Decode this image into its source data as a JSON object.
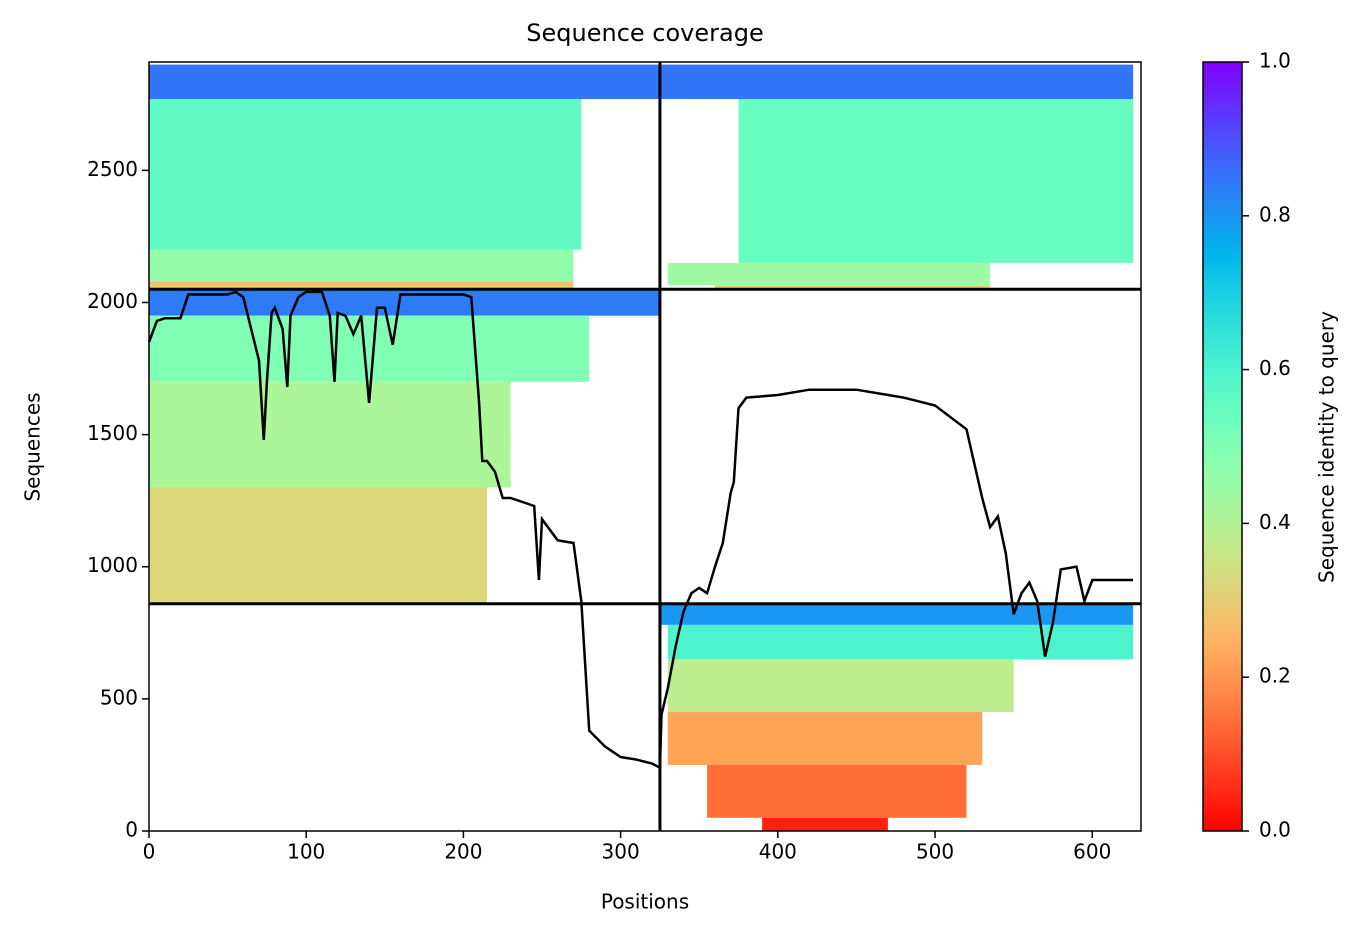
{
  "chart_data": {
    "type": "coverage",
    "title": "Sequence coverage",
    "xlabel": "Positions",
    "ylabel": "Sequences",
    "xlim": [
      0,
      631
    ],
    "ylim": [
      0,
      2910
    ],
    "xticks": [
      0,
      100,
      200,
      300,
      400,
      500,
      600
    ],
    "yticks": [
      0,
      500,
      1000,
      1500,
      2000,
      2500
    ],
    "colormap": "rainbow_r",
    "colorbar": {
      "label": "Sequence identity to query",
      "clim": [
        0,
        1
      ],
      "ticks": [
        {
          "value": 0,
          "label": "0.0"
        },
        {
          "value": 0.2,
          "label": "0.2"
        },
        {
          "value": 0.4,
          "label": "0.4"
        },
        {
          "value": 0.6,
          "label": "0.6"
        },
        {
          "value": 0.8,
          "label": "0.8"
        },
        {
          "value": 1,
          "label": "1.0"
        }
      ]
    },
    "dividers": {
      "x": [
        325
      ],
      "y": [
        860,
        2050
      ]
    },
    "blocks": [
      {
        "x0": 0,
        "x1": 325,
        "y0": 2770,
        "y1": 2900,
        "identity": 0.85
      },
      {
        "x0": 0,
        "x1": 275,
        "y0": 2200,
        "y1": 2770,
        "identity": 0.56
      },
      {
        "x0": 0,
        "x1": 270,
        "y0": 2080,
        "y1": 2200,
        "identity": 0.46
      },
      {
        "x0": 0,
        "x1": 270,
        "y0": 2050,
        "y1": 2080,
        "identity": 0.28
      },
      {
        "x0": 325,
        "x1": 626,
        "y0": 2770,
        "y1": 2900,
        "identity": 0.85
      },
      {
        "x0": 375,
        "x1": 626,
        "y0": 2150,
        "y1": 2770,
        "identity": 0.55
      },
      {
        "x0": 330,
        "x1": 535,
        "y0": 2065,
        "y1": 2150,
        "identity": 0.44
      },
      {
        "x0": 360,
        "x1": 535,
        "y0": 2050,
        "y1": 2065,
        "identity": 0.3
      },
      {
        "x0": 0,
        "x1": 325,
        "y0": 1950,
        "y1": 2050,
        "identity": 0.84
      },
      {
        "x0": 0,
        "x1": 280,
        "y0": 1700,
        "y1": 1950,
        "identity": 0.5
      },
      {
        "x0": 0,
        "x1": 230,
        "y0": 1300,
        "y1": 1700,
        "identity": 0.41
      },
      {
        "x0": 0,
        "x1": 215,
        "y0": 860,
        "y1": 1300,
        "identity": 0.32
      },
      {
        "x0": 325,
        "x1": 626,
        "y0": 780,
        "y1": 860,
        "identity": 0.8
      },
      {
        "x0": 330,
        "x1": 626,
        "y0": 650,
        "y1": 780,
        "identity": 0.6
      },
      {
        "x0": 330,
        "x1": 550,
        "y0": 450,
        "y1": 650,
        "identity": 0.38
      },
      {
        "x0": 330,
        "x1": 530,
        "y0": 250,
        "y1": 450,
        "identity": 0.22
      },
      {
        "x0": 355,
        "x1": 520,
        "y0": 50,
        "y1": 250,
        "identity": 0.14
      },
      {
        "x0": 390,
        "x1": 470,
        "y0": 0,
        "y1": 50,
        "identity": 0.04
      }
    ],
    "series": [
      {
        "name": "coverage",
        "color": "#000000",
        "x": [
          0,
          5,
          10,
          20,
          25,
          30,
          50,
          55,
          60,
          70,
          73,
          75,
          78,
          80,
          85,
          88,
          90,
          95,
          100,
          105,
          110,
          115,
          118,
          120,
          125,
          130,
          135,
          140,
          145,
          150,
          155,
          160,
          170,
          200,
          205,
          210,
          212,
          215,
          220,
          225,
          230,
          245,
          248,
          250,
          260,
          270,
          275,
          280,
          290,
          300,
          310,
          320,
          325,
          326,
          330,
          335,
          340,
          345,
          350,
          355,
          360,
          365,
          370,
          372,
          375,
          380,
          400,
          420,
          450,
          480,
          500,
          520,
          530,
          535,
          540,
          545,
          550,
          555,
          560,
          565,
          570,
          575,
          580,
          590,
          595,
          600,
          610,
          626
        ],
        "values": [
          1850,
          1930,
          1940,
          1940,
          2030,
          2030,
          2030,
          2040,
          2020,
          1780,
          1480,
          1700,
          1960,
          1980,
          1900,
          1680,
          1950,
          2020,
          2040,
          2040,
          2040,
          1950,
          1700,
          1960,
          1950,
          1880,
          1950,
          1620,
          1980,
          1980,
          1840,
          2030,
          2030,
          2030,
          2020,
          1620,
          1400,
          1400,
          1360,
          1260,
          1260,
          1230,
          950,
          1180,
          1100,
          1090,
          870,
          380,
          320,
          280,
          270,
          255,
          240,
          440,
          540,
          700,
          830,
          900,
          920,
          900,
          1000,
          1090,
          1280,
          1320,
          1600,
          1640,
          1650,
          1670,
          1670,
          1640,
          1610,
          1520,
          1260,
          1150,
          1190,
          1050,
          820,
          900,
          940,
          870,
          660,
          790,
          990,
          1000,
          870,
          950,
          950,
          950
        ]
      }
    ]
  }
}
